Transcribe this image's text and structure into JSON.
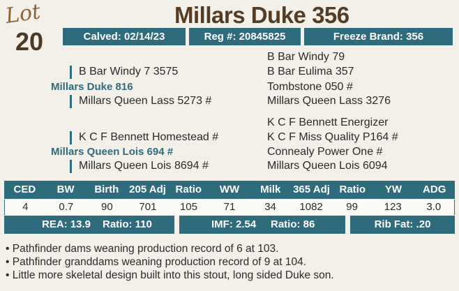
{
  "lot": {
    "label": "Lot",
    "number": "20"
  },
  "title": "Millars Duke 356",
  "info": {
    "calved": "Calved: 02/14/23",
    "reg": "Reg #: 20845825",
    "freeze_brand": "Freeze Brand: 356"
  },
  "pedigree": {
    "sire": "Millars Duke 816",
    "sire_sire": "B Bar Windy 7 3575",
    "sire_sire_sire": "B Bar Windy 79",
    "sire_sire_dam": "B Bar Eulima 357",
    "sire_dam": "Millars Queen Lass 5273 #",
    "sire_dam_sire": "Tombstone 050 #",
    "sire_dam_dam": "Millars Queen Lass 3276",
    "dam": "Millars Queen Lois 694 #",
    "dam_sire": "K C F Bennett Homestead #",
    "dam_sire_sire": "K C F Bennett Energizer",
    "dam_sire_dam": "K C F Miss Quality P164 #",
    "dam_dam": "Millars Queen Lois 8694 #",
    "dam_dam_sire": "Connealy Power One #",
    "dam_dam_dam": "Millars Queen Lois 6094"
  },
  "epd": {
    "headers": [
      "CED",
      "BW",
      "Birth",
      "205 Adj",
      "Ratio",
      "WW",
      "Milk",
      "365 Adj",
      "Ratio",
      "YW",
      "ADG"
    ],
    "values": [
      "4",
      "0.7",
      "90",
      "701",
      "105",
      "71",
      "34",
      "1082",
      "99",
      "123",
      "3.0"
    ]
  },
  "carcass": {
    "rea": "REA: 13.9",
    "rea_ratio": "Ratio: 110",
    "imf": "IMF: 2.54",
    "imf_ratio": "Ratio: 86",
    "rib_fat": "Rib Fat: .20"
  },
  "notes": [
    "• Pathfinder dams weaning production record of 6 at 103.",
    "• Pathfinder granddams weaning production record of 9 at 104.",
    "• Little more skeletal design built into this stout, long sided Duke son."
  ],
  "colors": {
    "accent": "#2e6b7c",
    "title": "#553c24",
    "lot": "#8b6634"
  }
}
